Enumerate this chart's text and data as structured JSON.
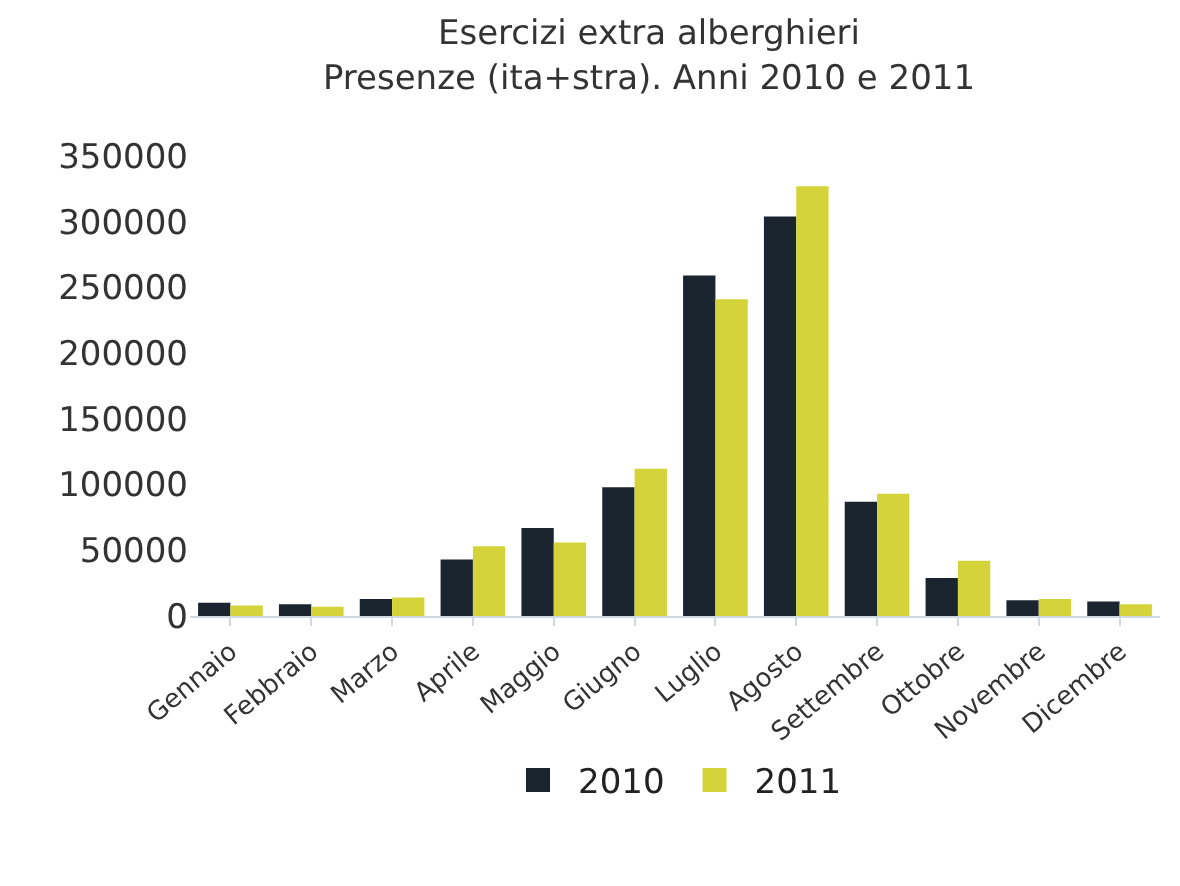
{
  "chart_data": {
    "type": "bar",
    "title": "Esercizi extra alberghieri\nPresenze (ita+stra). Anni 2010 e 2011",
    "categories": [
      "Gennaio",
      "Febbraio",
      "Marzo",
      "Aprile",
      "Maggio",
      "Giugno",
      "Luglio",
      "Agosto",
      "Settembre",
      "Ottobre",
      "Novembre",
      "Dicembre"
    ],
    "series": [
      {
        "name": "2010",
        "color": "#1a2530",
        "values": [
          10000,
          9000,
          13000,
          43000,
          67000,
          98000,
          259000,
          304000,
          87000,
          29000,
          12000,
          11000
        ]
      },
      {
        "name": "2011",
        "color": "#d4d43a",
        "values": [
          8000,
          7000,
          14000,
          53000,
          56000,
          112000,
          241000,
          327000,
          93000,
          42000,
          13000,
          9000
        ]
      }
    ],
    "ylim": [
      0,
      350000
    ],
    "yticks": [
      0,
      50000,
      100000,
      150000,
      200000,
      250000,
      300000,
      350000
    ],
    "grid": false,
    "legend": "bottom"
  }
}
